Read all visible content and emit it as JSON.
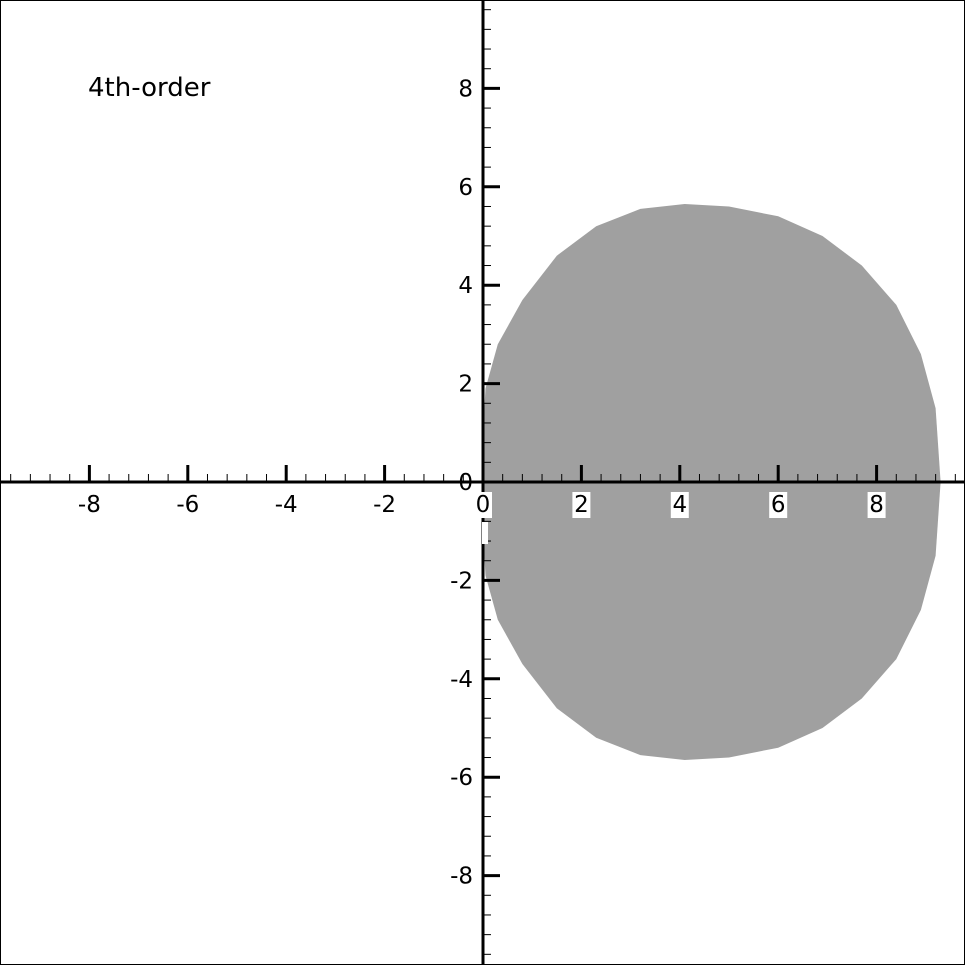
{
  "chart_data": {
    "type": "area",
    "title": "",
    "annotation": "4th-order",
    "xlabel": "",
    "ylabel": "",
    "xlim": [
      -9.8,
      9.8
    ],
    "ylim": [
      -9.8,
      9.8
    ],
    "grid": false,
    "x_ticks": [
      -8,
      -6,
      -4,
      -2,
      0,
      2,
      4,
      6,
      8
    ],
    "y_ticks": [
      -8,
      -6,
      -4,
      -2,
      0,
      2,
      4,
      6,
      8
    ],
    "x_tick_labels": [
      "-8",
      "-6",
      "-4",
      "-2",
      "0",
      "2",
      "4",
      "6",
      "8"
    ],
    "y_tick_labels": [
      "8",
      "6",
      "4",
      "2",
      "0",
      "-2",
      "-4",
      "-6",
      "-8"
    ],
    "region": {
      "fill_color": "#a0a0a0",
      "boundary": [
        [
          9.3,
          0.0
        ],
        [
          9.2,
          1.5
        ],
        [
          8.9,
          2.6
        ],
        [
          8.4,
          3.6
        ],
        [
          7.7,
          4.4
        ],
        [
          6.9,
          5.0
        ],
        [
          6.0,
          5.4
        ],
        [
          5.0,
          5.6
        ],
        [
          4.1,
          5.65
        ],
        [
          3.2,
          5.55
        ],
        [
          2.3,
          5.2
        ],
        [
          1.5,
          4.6
        ],
        [
          0.8,
          3.7
        ],
        [
          0.3,
          2.8
        ],
        [
          0.05,
          1.9
        ],
        [
          0.0,
          1.0
        ],
        [
          0.0,
          0.0
        ],
        [
          0.0,
          -1.0
        ],
        [
          0.05,
          -1.9
        ],
        [
          0.3,
          -2.8
        ],
        [
          0.8,
          -3.7
        ],
        [
          1.5,
          -4.6
        ],
        [
          2.3,
          -5.2
        ],
        [
          3.2,
          -5.55
        ],
        [
          4.1,
          -5.65
        ],
        [
          5.0,
          -5.6
        ],
        [
          6.0,
          -5.4
        ],
        [
          6.9,
          -5.0
        ],
        [
          7.7,
          -4.4
        ],
        [
          8.4,
          -3.6
        ],
        [
          8.9,
          -2.6
        ],
        [
          9.2,
          -1.5
        ],
        [
          9.3,
          0.0
        ]
      ]
    }
  }
}
